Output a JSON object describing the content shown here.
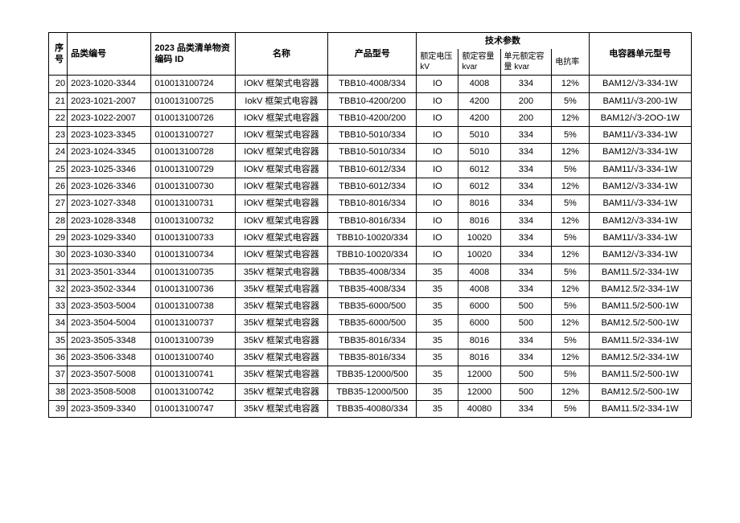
{
  "headers": {
    "seq": "序号",
    "category": "品类编号",
    "material": "2023 品类清单物资编码 ID",
    "name": "名称",
    "model": "产品型号",
    "tech_params": "技术参数",
    "voltage_top": "额定电压",
    "voltage_sub": "kV",
    "capacity_top": "额定容量",
    "capacity_sub": "kvar",
    "unit_top": "单元额定容",
    "unit_sub": "量 kvar",
    "reactance": "电抗率",
    "cap_model": "电容器单元型号"
  },
  "rows": [
    {
      "seq": "20",
      "cat": "2023-1020-3344",
      "mat": "010013100724",
      "name": "IOkV 框架式电容器",
      "model": "TBB10-4008/334",
      "volt": "IO",
      "cap": "4008",
      "unit": "334",
      "react": "12%",
      "capmodel": "BAM12/√3-334-1W"
    },
    {
      "seq": "21",
      "cat": "2023-1021-2007",
      "mat": "010013100725",
      "name": "IokV 框架式电容器",
      "model": "TBB10-4200/200",
      "volt": "IO",
      "cap": "4200",
      "unit": "200",
      "react": "5%",
      "capmodel": "BAM11/√3-200-1W"
    },
    {
      "seq": "22",
      "cat": "2023-1022-2007",
      "mat": "010013100726",
      "name": "IOkV 框架式电容器",
      "model": "TBB10-4200/200",
      "volt": "IO",
      "cap": "4200",
      "unit": "200",
      "react": "12%",
      "capmodel": "BAM12/√3-2OO-1W"
    },
    {
      "seq": "23",
      "cat": "2023-1023-3345",
      "mat": "010013100727",
      "name": "IOkV 框架式电容器",
      "model": "TBB10-5010/334",
      "volt": "IO",
      "cap": "5010",
      "unit": "334",
      "react": "5%",
      "capmodel": "BAM11/√3-334-1W"
    },
    {
      "seq": "24",
      "cat": "2023-1024-3345",
      "mat": "010013100728",
      "name": "IOkV 框架式电容器",
      "model": "TBB10-5010/334",
      "volt": "IO",
      "cap": "5010",
      "unit": "334",
      "react": "12%",
      "capmodel": "BAM12/√3-334-1W"
    },
    {
      "seq": "25",
      "cat": "2023-1025-3346",
      "mat": "010013100729",
      "name": "IOkV 框架式电容器",
      "model": "TBB10-6012/334",
      "volt": "IO",
      "cap": "6012",
      "unit": "334",
      "react": "5%",
      "capmodel": "BAM11/√3-334-1W"
    },
    {
      "seq": "26",
      "cat": "2023-1026-3346",
      "mat": "010013100730",
      "name": "IOkV 框架式电容器",
      "model": "TBB10-6012/334",
      "volt": "IO",
      "cap": "6012",
      "unit": "334",
      "react": "12%",
      "capmodel": "BAM12/√3-334-1W"
    },
    {
      "seq": "27",
      "cat": "2023-1027-3348",
      "mat": "010013100731",
      "name": "IOkV 框架式电容器",
      "model": "TBB10-8016/334",
      "volt": "IO",
      "cap": "8016",
      "unit": "334",
      "react": "5%",
      "capmodel": "BAM11/√3-334-1W"
    },
    {
      "seq": "28",
      "cat": "2023-1028-3348",
      "mat": "010013100732",
      "name": "IOkV 框架式电容器",
      "model": "TBB10-8016/334",
      "volt": "IO",
      "cap": "8016",
      "unit": "334",
      "react": "12%",
      "capmodel": "BAM12/√3-334-1W"
    },
    {
      "seq": "29",
      "cat": "2023-1029-3340",
      "mat": "010013100733",
      "name": "IOkV 框架式电容器",
      "model": "TBB10-10020/334",
      "volt": "IO",
      "cap": "10020",
      "unit": "334",
      "react": "5%",
      "capmodel": "BAM11/√3-334-1W"
    },
    {
      "seq": "30",
      "cat": "2023-1030-3340",
      "mat": "010013100734",
      "name": "IOkV 框架式电容器",
      "model": "TBB10-10020/334",
      "volt": "IO",
      "cap": "10020",
      "unit": "334",
      "react": "12%",
      "capmodel": "BAM12/√3-334-1W"
    },
    {
      "seq": "31",
      "cat": "2023-3501-3344",
      "mat": "010013100735",
      "name": "35kV 框架式电容器",
      "model": "TBB35-4008/334",
      "volt": "35",
      "cap": "4008",
      "unit": "334",
      "react": "5%",
      "capmodel": "BAM11.5/2-334-1W"
    },
    {
      "seq": "32",
      "cat": "2023-3502-3344",
      "mat": "010013100736",
      "name": "35kV 框架式电容器",
      "model": "TBB35-4008/334",
      "volt": "35",
      "cap": "4008",
      "unit": "334",
      "react": "12%",
      "capmodel": "BAM12.5/2-334-1W"
    },
    {
      "seq": "33",
      "cat": "2023-3503-5004",
      "mat": "010013100738",
      "name": "35kV 框架式电容器",
      "model": "TBB35-6000/500",
      "volt": "35",
      "cap": "6000",
      "unit": "500",
      "react": "5%",
      "capmodel": "BAM11.5/2-500-1W"
    },
    {
      "seq": "34",
      "cat": "2023-3504-5004",
      "mat": "010013100737",
      "name": "35kV 框架式电容器",
      "model": "TBB35-6000/500",
      "volt": "35",
      "cap": "6000",
      "unit": "500",
      "react": "12%",
      "capmodel": "BAM12.5/2-500-1W"
    },
    {
      "seq": "35",
      "cat": "2023-3505-3348",
      "mat": "010013100739",
      "name": "35kV 框架式电容器",
      "model": "TBB35-8016/334",
      "volt": "35",
      "cap": "8016",
      "unit": "334",
      "react": "5%",
      "capmodel": "BAM11.5/2-334-1W"
    },
    {
      "seq": "36",
      "cat": "2023-3506-3348",
      "mat": "010013100740",
      "name": "35kV 框架式电容器",
      "model": "TBB35-8016/334",
      "volt": "35",
      "cap": "8016",
      "unit": "334",
      "react": "12%",
      "capmodel": "BAM12.5/2-334-1W"
    },
    {
      "seq": "37",
      "cat": "2023-3507-5008",
      "mat": "010013100741",
      "name": "35kV 框架式电容器",
      "model": "TBB35-12000/500",
      "volt": "35",
      "cap": "12000",
      "unit": "500",
      "react": "5%",
      "capmodel": "BAM11.5/2-500-1W"
    },
    {
      "seq": "38",
      "cat": "2023-3508-5008",
      "mat": "010013100742",
      "name": "35kV 框架式电容器",
      "model": "TBB35-12000/500",
      "volt": "35",
      "cap": "12000",
      "unit": "500",
      "react": "12%",
      "capmodel": "BAM12.5/2-500-1W"
    },
    {
      "seq": "39",
      "cat": "2023-3509-3340",
      "mat": "010013100747",
      "name": "35kV 框架式电容器",
      "model": "TBB35-40080/334",
      "volt": "35",
      "cap": "40080",
      "unit": "334",
      "react": "5%",
      "capmodel": "BAM11.5/2-334-1W"
    }
  ],
  "style": {
    "font_size": 11,
    "border_color": "#000000",
    "background_color": "#ffffff",
    "text_color": "#000000"
  }
}
